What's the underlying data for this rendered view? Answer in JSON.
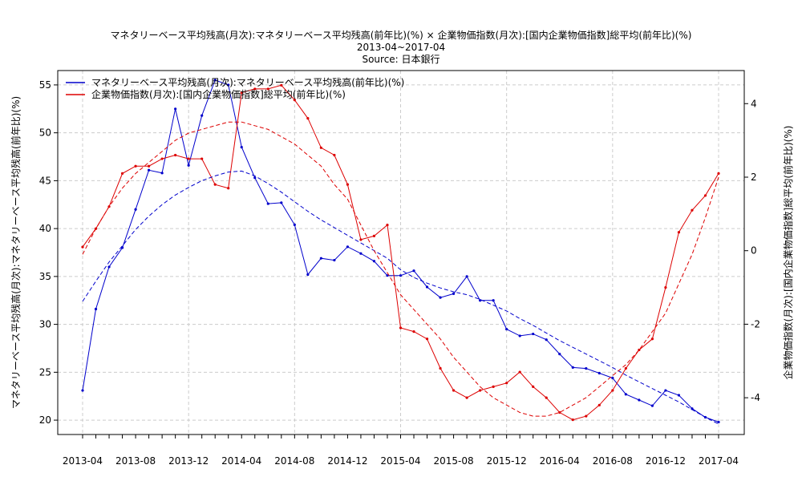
{
  "chart_data": {
    "type": "line",
    "title": "マネタリーベース平均残高(月次):マネタリーベース平均残高(前年比)(%) × 企業物価指数(月次):[国内企業物価指数]総平均(前年比)(%)",
    "subtitle": "2013-04~2017-04",
    "source": "Source: 日本銀行",
    "x_tick_labels": [
      "2013-04",
      "2013-08",
      "2013-12",
      "2014-04",
      "2014-08",
      "2014-12",
      "2015-04",
      "2015-08",
      "2015-12",
      "2016-04",
      "2016-08",
      "2016-12",
      "2017-04"
    ],
    "ylabel_left": "マネタリーベース平均残高(月次):マネタリーベース平均残高(前年比)(%)",
    "ylabel_right": "企業物価指数(月次):[国内企業物価指数]総平均(前年比)(%)",
    "ylim_left": [
      18.5,
      56.5
    ],
    "ylim_right": [
      -5.0,
      4.9
    ],
    "yticks_left": [
      "20",
      "25",
      "30",
      "35",
      "40",
      "45",
      "50",
      "55"
    ],
    "yticks_right": [
      "-4",
      "-2",
      "0",
      "2",
      "4"
    ],
    "grid": true,
    "legend_position": "top-left",
    "series": [
      {
        "name": "マネタリーベース平均残高(月次):マネタリーベース平均残高(前年比)(%)",
        "axis": "left",
        "color": "#0000cc",
        "values": [
          23.1,
          31.6,
          36.0,
          38.0,
          42.0,
          46.1,
          45.8,
          52.5,
          46.6,
          51.8,
          55.5,
          55.0,
          48.5,
          45.3,
          42.6,
          42.7,
          40.4,
          35.2,
          36.9,
          36.7,
          38.1,
          37.4,
          36.6,
          35.1,
          35.1,
          35.6,
          33.9,
          32.8,
          33.2,
          35.0,
          32.5,
          32.5,
          29.5,
          28.8,
          29.0,
          28.4,
          26.9,
          25.5,
          25.4,
          24.9,
          24.4,
          22.7,
          22.1,
          21.5,
          23.1,
          22.6,
          21.2,
          20.3,
          19.8
        ]
      },
      {
        "name": "企業物価指数(月次):[国内企業物価指数]総平均(前年比)(%)",
        "axis": "right",
        "color": "#dd0000",
        "values": [
          0.1,
          0.6,
          1.2,
          2.1,
          2.3,
          2.3,
          2.5,
          2.6,
          2.5,
          2.5,
          1.8,
          1.7,
          4.3,
          4.4,
          4.4,
          4.5,
          4.1,
          3.6,
          2.8,
          2.6,
          1.8,
          0.3,
          0.4,
          0.7,
          -2.1,
          -2.2,
          -2.4,
          -3.2,
          -3.8,
          -4.0,
          -3.8,
          -3.7,
          -3.6,
          -3.3,
          -3.7,
          -4.0,
          -4.4,
          -4.6,
          -4.5,
          -4.2,
          -3.8,
          -3.2,
          -2.7,
          -2.4,
          -1.0,
          0.5,
          1.1,
          1.5,
          2.1
        ]
      },
      {
        "name": "",
        "axis": "left",
        "color": "#0000cc",
        "line_style": "dashed",
        "values": [
          32.4,
          34.5,
          36.5,
          38.2,
          39.9,
          41.3,
          42.5,
          43.5,
          44.3,
          45.0,
          45.5,
          45.9,
          46.0,
          45.5,
          44.7,
          43.8,
          42.8,
          41.8,
          40.9,
          40.1,
          39.3,
          38.5,
          37.7,
          36.9,
          35.7,
          34.9,
          34.3,
          33.8,
          33.4,
          33.1,
          32.6,
          32.0,
          31.4,
          30.6,
          29.9,
          29.1,
          28.3,
          27.6,
          26.9,
          26.2,
          25.5,
          24.7,
          24.0,
          23.3,
          22.6,
          21.9,
          21.1,
          20.3,
          19.6
        ]
      },
      {
        "name": "",
        "axis": "right",
        "color": "#dd0000",
        "line_style": "dashed",
        "values": [
          -0.1,
          0.6,
          1.2,
          1.7,
          2.1,
          2.4,
          2.7,
          3.0,
          3.2,
          3.3,
          3.4,
          3.5,
          3.5,
          3.4,
          3.3,
          3.1,
          2.9,
          2.6,
          2.3,
          1.8,
          1.4,
          0.7,
          0.0,
          -0.6,
          -1.2,
          -1.6,
          -2.0,
          -2.4,
          -2.9,
          -3.3,
          -3.7,
          -4.0,
          -4.2,
          -4.4,
          -4.5,
          -4.5,
          -4.4,
          -4.2,
          -4.0,
          -3.7,
          -3.4,
          -3.1,
          -2.7,
          -2.2,
          -1.7,
          -0.9,
          -0.1,
          0.9,
          2.0
        ]
      }
    ]
  }
}
